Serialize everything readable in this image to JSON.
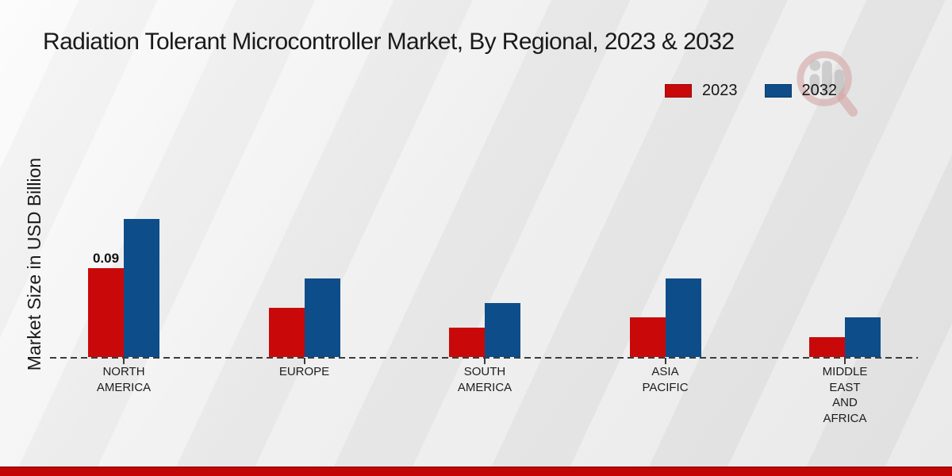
{
  "title": "Radiation Tolerant Microcontroller Market, By Regional, 2023 & 2032",
  "ylabel": "Market Size in USD Billion",
  "legend": {
    "items": [
      {
        "label": "2023",
        "color": "#c90909"
      },
      {
        "label": "2032",
        "color": "#0d4d8a"
      }
    ]
  },
  "watermark_icon": "market-research-magnifier-logo",
  "footer": {
    "color": "#c30505"
  },
  "chart_data": {
    "type": "bar",
    "title": "Radiation Tolerant Microcontroller Market, By Regional, 2023 & 2032",
    "xlabel": "",
    "ylabel": "Market Size in USD Billion",
    "ylim": [
      0,
      0.15
    ],
    "grid": false,
    "legend_position": "top-right",
    "categories": [
      "NORTH AMERICA",
      "EUROPE",
      "SOUTH AMERICA",
      "ASIA PACIFIC",
      "MIDDLE EAST AND AFRICA"
    ],
    "category_lines": [
      [
        "NORTH",
        "AMERICA"
      ],
      [
        "EUROPE"
      ],
      [
        "SOUTH",
        "AMERICA"
      ],
      [
        "ASIA",
        "PACIFIC"
      ],
      [
        "MIDDLE",
        "EAST",
        "AND",
        "AFRICA"
      ]
    ],
    "series": [
      {
        "name": "2023",
        "color": "#c90909",
        "values": [
          0.09,
          0.05,
          0.03,
          0.04,
          0.02
        ]
      },
      {
        "name": "2032",
        "color": "#0d4d8a",
        "values": [
          0.14,
          0.08,
          0.055,
          0.08,
          0.04
        ]
      }
    ],
    "annotations": [
      {
        "category_index": 0,
        "series_index": 0,
        "text": "0.09"
      }
    ]
  }
}
